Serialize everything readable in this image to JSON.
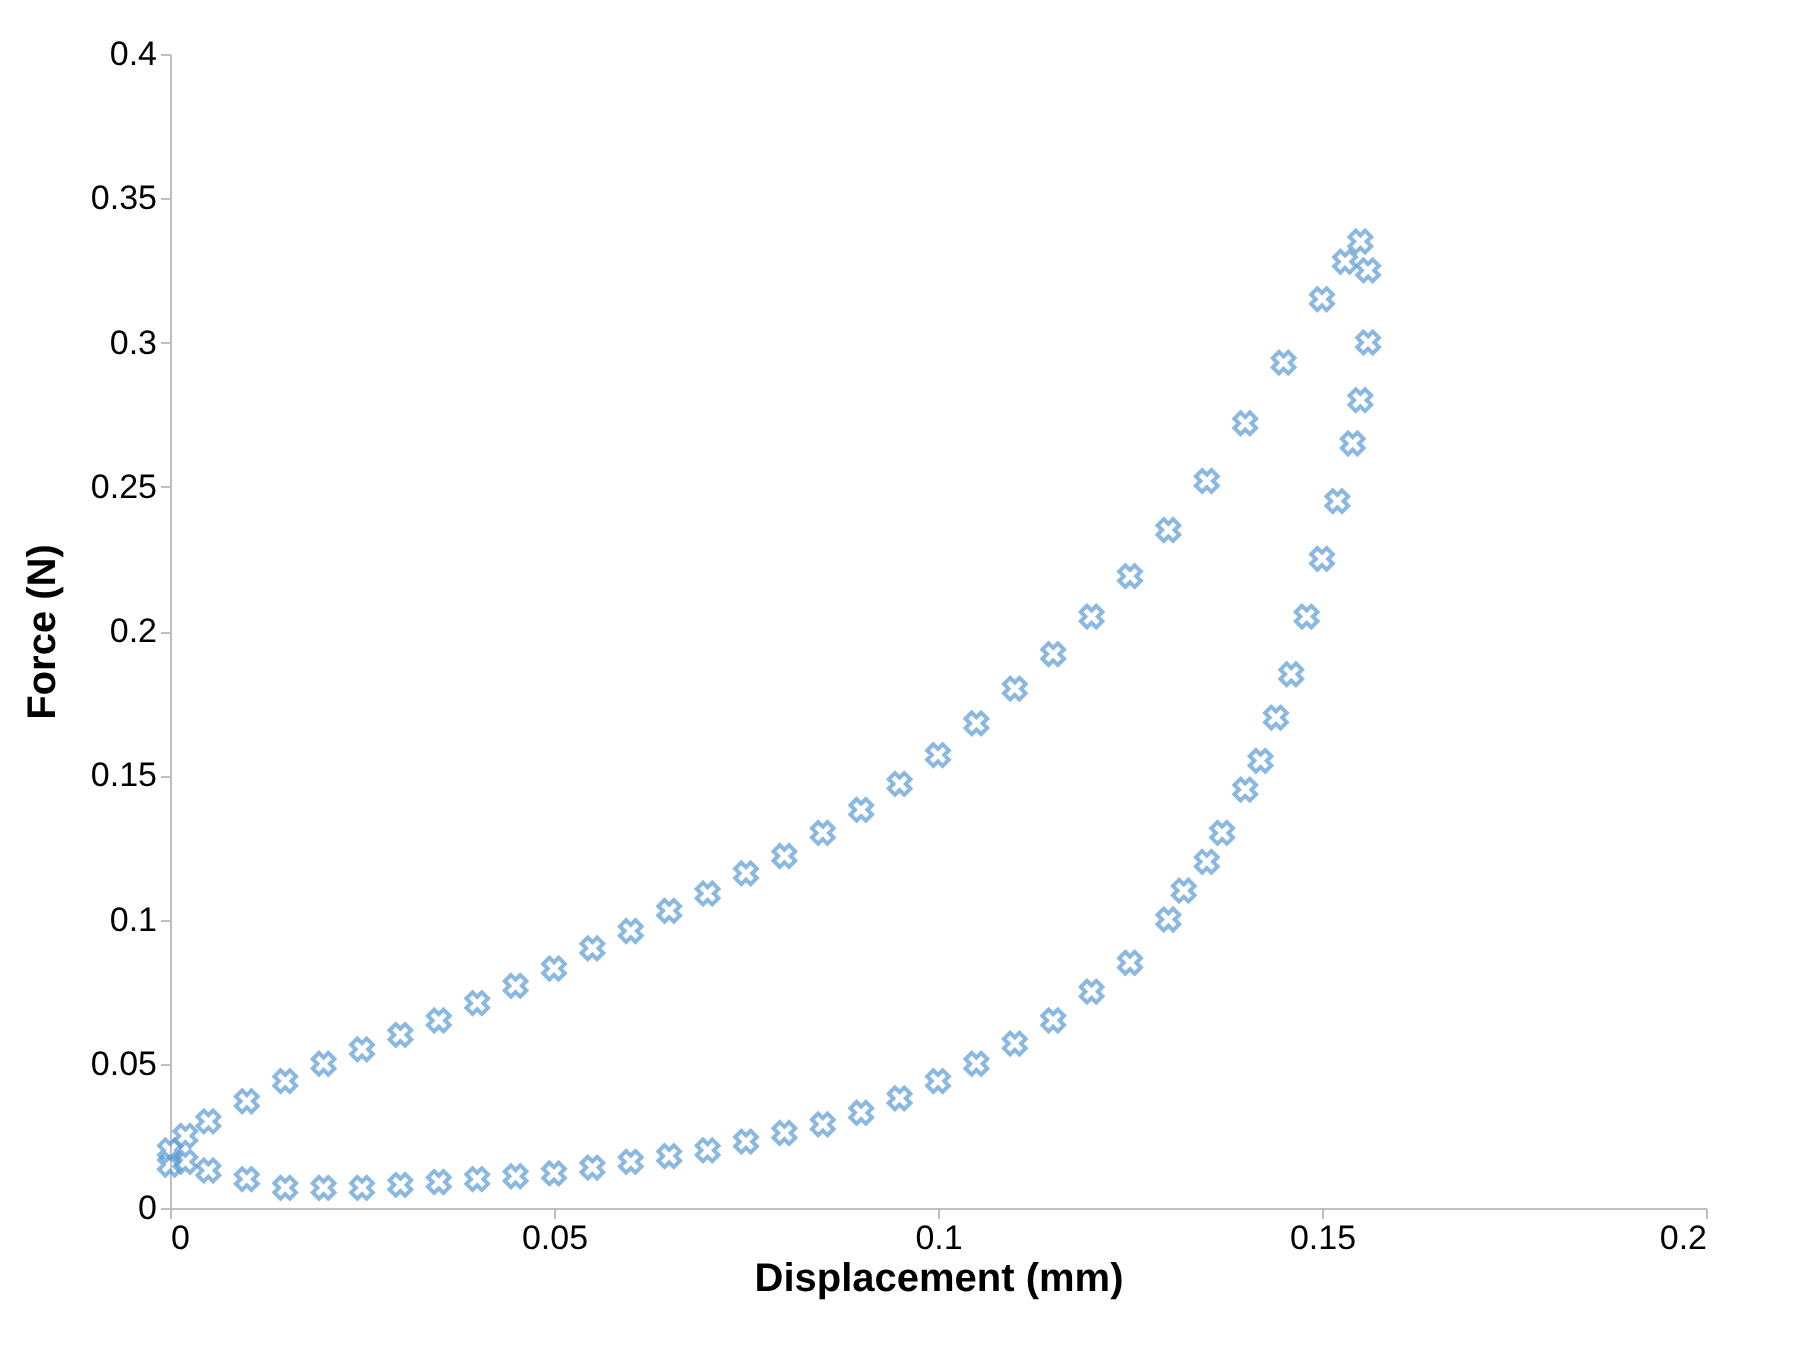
{
  "chart_data": {
    "type": "scatter",
    "xlabel": "Displacement (mm)",
    "ylabel": "Force (N)",
    "xlim": [
      0,
      0.2
    ],
    "ylim": [
      0,
      0.4
    ],
    "xticks": [
      0,
      0.05,
      0.1,
      0.15,
      0.2
    ],
    "yticks": [
      0,
      0.05,
      0.1,
      0.15,
      0.2,
      0.25,
      0.3,
      0.35,
      0.4
    ],
    "grid": false,
    "marker": "cross",
    "series": [
      {
        "color": "#5b9bd5",
        "x": [
          0,
          0.002,
          0.005,
          0.01,
          0.015,
          0.02,
          0.025,
          0.03,
          0.035,
          0.04,
          0.045,
          0.05,
          0.055,
          0.06,
          0.065,
          0.07,
          0.075,
          0.08,
          0.085,
          0.09,
          0.095,
          0.1,
          0.105,
          0.11,
          0.115,
          0.12,
          0.125,
          0.13,
          0.135,
          0.14,
          0.145,
          0.15,
          0.153,
          0.155,
          0.156,
          0.156,
          0.155,
          0.154,
          0.152,
          0.15,
          0.148,
          0.146,
          0.144,
          0.142,
          0.14,
          0.137,
          0.135,
          0.132,
          0.13,
          0.125,
          0.12,
          0.115,
          0.11,
          0.105,
          0.1,
          0.095,
          0.09,
          0.085,
          0.08,
          0.075,
          0.07,
          0.065,
          0.06,
          0.055,
          0.05,
          0.045,
          0.04,
          0.035,
          0.03,
          0.025,
          0.02,
          0.015,
          0.01,
          0.005,
          0.002,
          0
        ],
        "values": [
          0.015,
          0.025,
          0.03,
          0.037,
          0.044,
          0.05,
          0.055,
          0.06,
          0.065,
          0.071,
          0.077,
          0.083,
          0.09,
          0.096,
          0.103,
          0.109,
          0.116,
          0.122,
          0.13,
          0.138,
          0.147,
          0.157,
          0.168,
          0.18,
          0.192,
          0.205,
          0.219,
          0.235,
          0.252,
          0.272,
          0.293,
          0.315,
          0.328,
          0.335,
          0.325,
          0.3,
          0.28,
          0.265,
          0.245,
          0.225,
          0.205,
          0.185,
          0.17,
          0.155,
          0.145,
          0.13,
          0.12,
          0.11,
          0.1,
          0.085,
          0.075,
          0.065,
          0.057,
          0.05,
          0.044,
          0.038,
          0.033,
          0.029,
          0.026,
          0.023,
          0.02,
          0.018,
          0.016,
          0.014,
          0.012,
          0.011,
          0.01,
          0.009,
          0.008,
          0.007,
          0.007,
          0.007,
          0.01,
          0.013,
          0.016,
          0.02
        ]
      }
    ]
  }
}
